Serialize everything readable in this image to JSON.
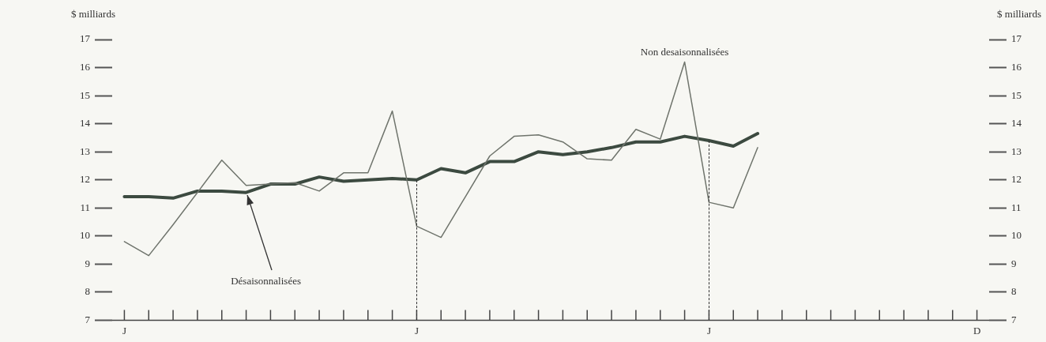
{
  "chart_data": {
    "type": "line",
    "ylabel": "$ milliards",
    "y2label": "$ milliards",
    "categories": [
      "J",
      null,
      null,
      null,
      null,
      null,
      null,
      null,
      null,
      null,
      null,
      null,
      "J",
      null,
      null,
      null,
      null,
      null,
      null,
      null,
      null,
      null,
      null,
      null,
      "J",
      null,
      null,
      null,
      null,
      null,
      null,
      null,
      null,
      null,
      null,
      "D"
    ],
    "ylim": [
      7,
      17
    ],
    "yticks": [
      7,
      8,
      9,
      10,
      11,
      12,
      13,
      14,
      15,
      16,
      17
    ],
    "y2lim": [
      7,
      17
    ],
    "y2ticks": [
      7,
      8,
      9,
      10,
      11,
      12,
      13,
      14,
      15,
      16,
      17
    ],
    "series": [
      {
        "name": "Désaisonnalisées",
        "color": "#3c4a40",
        "values": [
          11.4,
          11.4,
          11.35,
          11.6,
          11.6,
          11.55,
          11.85,
          11.85,
          12.1,
          11.95,
          12.0,
          12.05,
          12.0,
          12.4,
          12.25,
          12.65,
          12.65,
          13.0,
          12.9,
          13.0,
          13.15,
          13.35,
          13.35,
          13.55,
          13.4,
          13.2,
          13.65,
          null,
          null,
          null,
          null,
          null,
          null,
          null,
          null,
          null
        ]
      },
      {
        "name": "Non desaisonnalisées",
        "color": "#6f746c",
        "values": [
          9.8,
          9.3,
          10.4,
          11.55,
          12.7,
          11.8,
          11.85,
          11.9,
          11.6,
          12.25,
          12.25,
          14.45,
          10.35,
          9.95,
          11.4,
          12.85,
          13.55,
          13.6,
          13.35,
          12.75,
          12.7,
          13.8,
          13.45,
          16.2,
          11.2,
          11.0,
          13.15,
          null,
          null,
          null,
          null,
          null,
          null,
          null,
          null,
          null
        ]
      }
    ],
    "grid": false,
    "legend": false,
    "marker": "none",
    "line_style": "solid"
  }
}
